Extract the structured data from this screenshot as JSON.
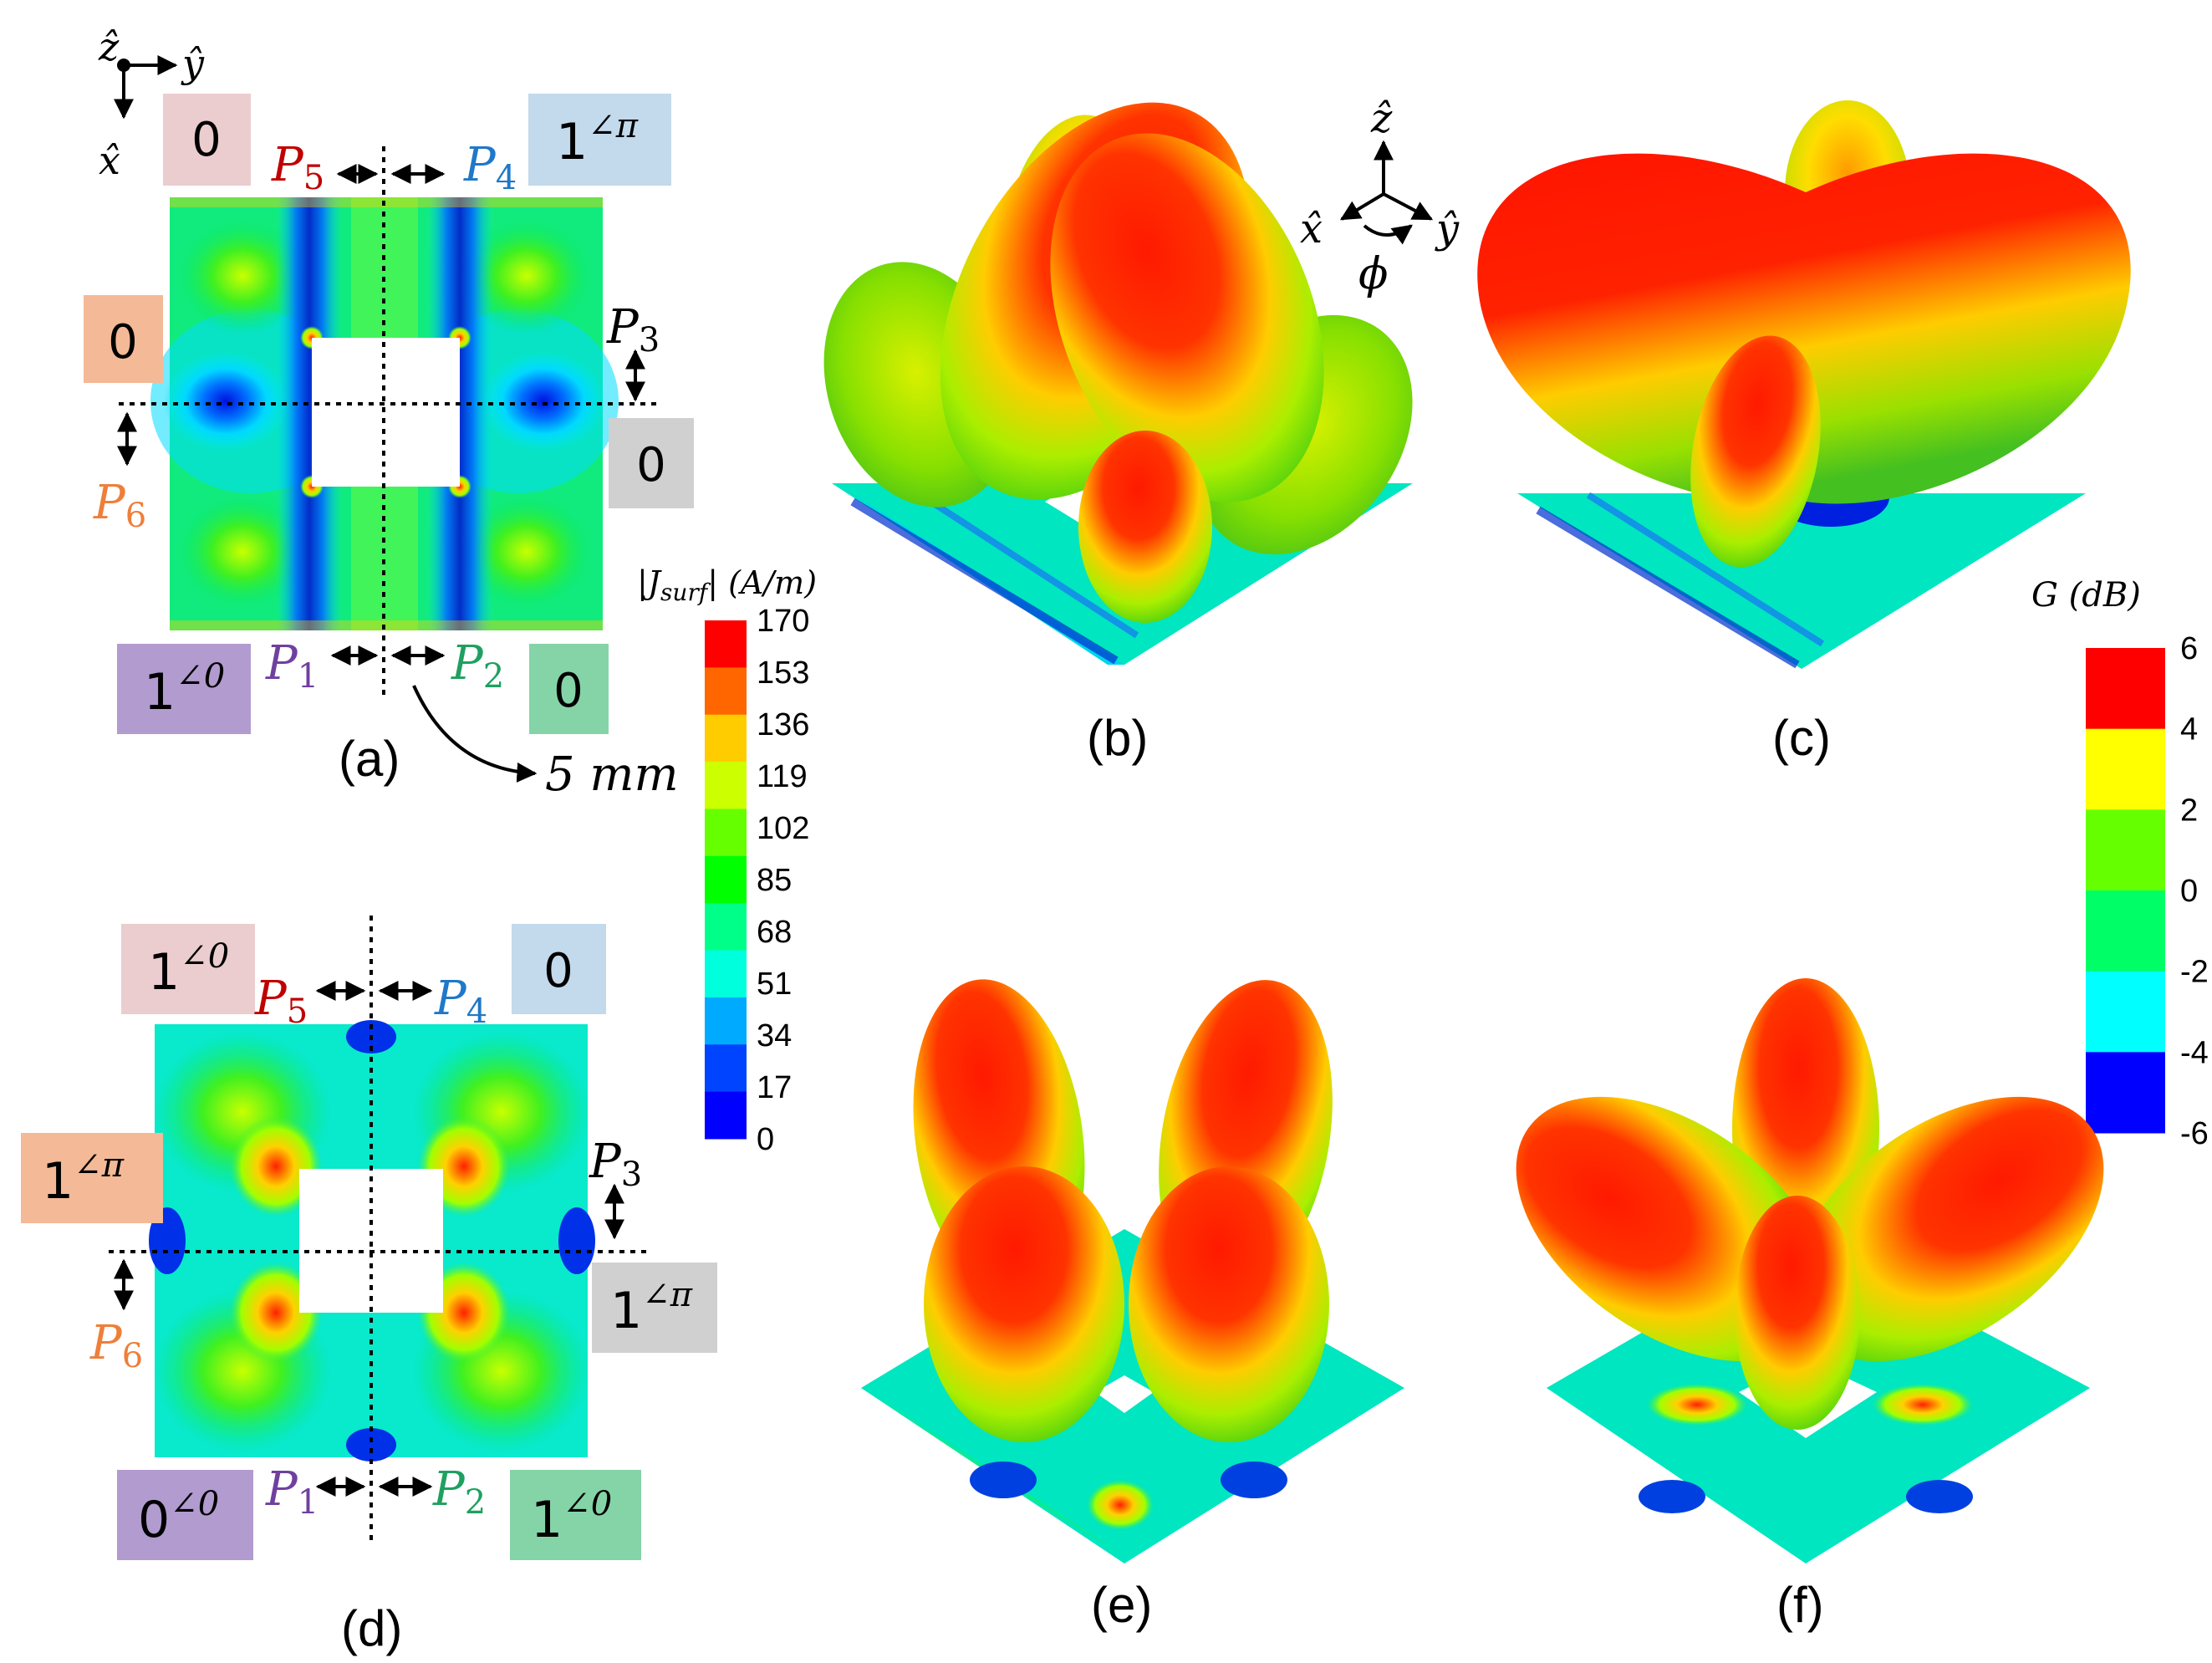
{
  "colors": {
    "pink": "#ebcdcf",
    "salmon": "#f4b997",
    "gray": "#d0d0d0",
    "lightblue": "#c3d9ec",
    "purple": "#b29bcf",
    "mint": "#85d4a8",
    "red": "#c00000",
    "blue": "#1f78c8",
    "orange": "#ee7f3a",
    "violet": "#7040a0",
    "green": "#1fa060"
  },
  "panel_a": {
    "caption": "(a)",
    "axes": {
      "z": "ẑ",
      "y": "ŷ",
      "x": "x̂"
    },
    "ports": {
      "p5": {
        "base": "P",
        "sub": "5",
        "value": "0"
      },
      "p4": {
        "base": "P",
        "sub": "4",
        "mag": "1",
        "phase": "∠π"
      },
      "p3": {
        "base": "P",
        "sub": "3",
        "value": "0"
      },
      "p6": {
        "base": "P",
        "sub": "6",
        "value": "0"
      },
      "p1": {
        "base": "P",
        "sub": "1",
        "mag": "1",
        "phase": "∠0"
      },
      "p2": {
        "base": "P",
        "sub": "2",
        "value": "0"
      }
    },
    "dimension": "5 mm"
  },
  "panel_d": {
    "caption": "(d)",
    "ports": {
      "p5": {
        "base": "P",
        "sub": "5",
        "mag": "1",
        "phase": "∠0"
      },
      "p4": {
        "base": "P",
        "sub": "4",
        "value": "0"
      },
      "p3": {
        "base": "P",
        "sub": "3",
        "mag": "1",
        "phase": "∠π"
      },
      "p6": {
        "base": "P",
        "sub": "6",
        "mag": "1",
        "phase": "∠π"
      },
      "p1": {
        "base": "P",
        "sub": "1",
        "mag": "0",
        "phase": "∠0"
      },
      "p2": {
        "base": "P",
        "sub": "2",
        "mag": "1",
        "phase": "∠0"
      }
    }
  },
  "current_bar": {
    "title": "|J",
    "title_sub": "surf",
    "title_end": "| (A/m)",
    "ticks": [
      "170",
      "153",
      "136",
      "119",
      "102",
      "85",
      "68",
      "51",
      "34",
      "17",
      "0"
    ],
    "colors": [
      "#ff0000",
      "#ff6600",
      "#ffcc00",
      "#ccff00",
      "#66ff00",
      "#00ff00",
      "#00ff88",
      "#00ffdd",
      "#00aaff",
      "#0044ff",
      "#0000ff"
    ]
  },
  "gain_bar": {
    "title": "G (dB)",
    "ticks": [
      "6",
      "4",
      "2",
      "0",
      "-2",
      "-4",
      "-6"
    ],
    "colors": [
      "#ff0000",
      "#ffff00",
      "#66ff00",
      "#00ff66",
      "#00ffff",
      "#0000ff"
    ]
  },
  "pattern_axes": {
    "z": "ẑ",
    "x": "x̂",
    "y": "ŷ",
    "phi": "ϕ"
  },
  "captions": {
    "b": "(b)",
    "c": "(c)",
    "e": "(e)",
    "f": "(f)"
  }
}
